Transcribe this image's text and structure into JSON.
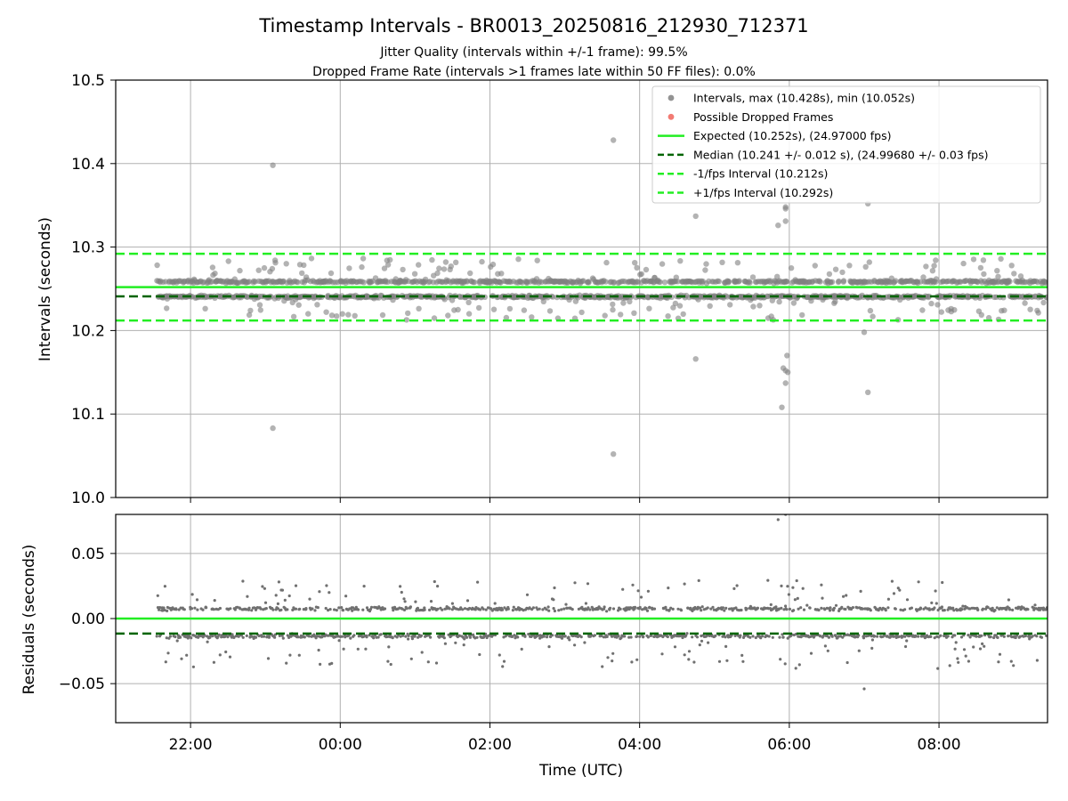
{
  "chart_data": [
    {
      "type": "scatter",
      "title": "Timestamp Intervals - BR0013_20250816_212930_712371",
      "subtitle_lines": [
        "Jitter Quality (intervals within +/-1 frame): 99.5%",
        "Dropped Frame Rate (intervals >1 frames late within 50 FF files): 0.0%"
      ],
      "ylabel": "Intervals (seconds)",
      "ylim": [
        10.0,
        10.5
      ],
      "yticks": [
        "10.0",
        "10.1",
        "10.2",
        "10.3",
        "10.4",
        "10.5"
      ],
      "ytick_values": [
        10.0,
        10.1,
        10.2,
        10.3,
        10.4,
        10.5
      ],
      "grid": true,
      "legend_position": "top-right",
      "series": [
        {
          "name": "Intervals, max (10.428s), min (10.052s)",
          "kind": "scatter",
          "color": "#808080",
          "max": 10.428,
          "min": 10.052,
          "bands": [
            10.2585,
            10.2405
          ],
          "outliers": [
            [
              23.1,
              10.398
            ],
            [
              23.1,
              10.083
            ],
            [
              27.65,
              10.428
            ],
            [
              27.65,
              10.052
            ],
            [
              28.75,
              10.337
            ],
            [
              28.75,
              10.166
            ],
            [
              29.85,
              10.326
            ],
            [
              29.95,
              10.346
            ],
            [
              29.95,
              10.348
            ],
            [
              29.95,
              10.331
            ],
            [
              29.9,
              10.108
            ],
            [
              29.92,
              10.155
            ],
            [
              29.95,
              10.152
            ],
            [
              29.98,
              10.15
            ],
            [
              29.95,
              10.137
            ],
            [
              29.97,
              10.17
            ],
            [
              31.05,
              10.352
            ],
            [
              31.05,
              10.126
            ],
            [
              31.0,
              10.198
            ]
          ]
        },
        {
          "name": "Possible Dropped Frames",
          "kind": "scatter",
          "color": "#f0645a",
          "points": []
        },
        {
          "name": "Expected (10.252s), (24.97000 fps)",
          "kind": "hline",
          "value": 10.252,
          "color": "#22ee22",
          "style": "solid"
        },
        {
          "name": "Median (10.241 +/- 0.012 s), (24.99680 +/- 0.03 fps)",
          "kind": "hline",
          "value": 10.241,
          "color": "#006400",
          "style": "dashed"
        },
        {
          "name": "-1/fps Interval (10.212s)",
          "kind": "hline",
          "value": 10.212,
          "color": "#22ee22",
          "style": "dashed"
        },
        {
          "name": "+1/fps Interval (10.292s)",
          "kind": "hline",
          "value": 10.292,
          "color": "#22ee22",
          "style": "dashed"
        }
      ]
    },
    {
      "type": "scatter",
      "xlabel": "Time (UTC)",
      "ylabel": "Residuals (seconds)",
      "xlim_hours": [
        21.0,
        33.45
      ],
      "ylim": [
        -0.08,
        0.08
      ],
      "xticks": [
        "22:00",
        "00:00",
        "02:00",
        "04:00",
        "06:00",
        "08:00"
      ],
      "xtick_hours": [
        22,
        24,
        26,
        28,
        30,
        32
      ],
      "yticks": [
        "0.05",
        "0.00",
        "−0.05"
      ],
      "ytick_values": [
        0.05,
        0.0,
        -0.05
      ],
      "data_start_hour": 21.55,
      "data_end_hour": 33.45,
      "grid": true,
      "series": [
        {
          "name": "Residuals",
          "kind": "scatter",
          "color": "#707070",
          "bands": [
            0.0075,
            -0.0135
          ],
          "outliers": [
            [
              29.85,
              0.076
            ],
            [
              29.95,
              0.08
            ],
            [
              31.0,
              -0.054
            ]
          ]
        },
        {
          "name": "Expected",
          "kind": "hline",
          "value": 0.0,
          "color": "#22ee22",
          "style": "solid"
        },
        {
          "name": "Median",
          "kind": "hline",
          "value": -0.0115,
          "color": "#006400",
          "style": "dashed"
        }
      ]
    }
  ]
}
